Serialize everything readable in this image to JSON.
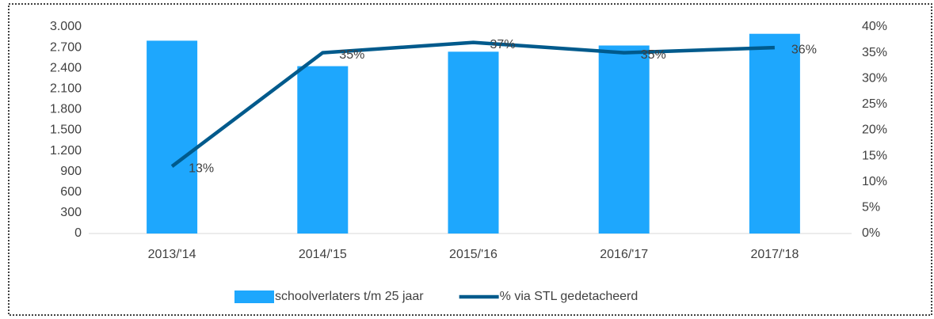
{
  "chart_data": {
    "type": "bar_line",
    "categories": [
      "2013/'14",
      "2014/'15",
      "2015/'16",
      "2016/'17",
      "2017/'18"
    ],
    "series": [
      {
        "name": "schoolverlaters t/m 25 jaar",
        "type": "bar",
        "color": "#1ea7fd",
        "values": [
          2800,
          2430,
          2640,
          2730,
          2900
        ]
      },
      {
        "name": "% via STL gedetacheerd",
        "type": "line",
        "axis": "y2",
        "color": "#005a8c",
        "values": [
          13,
          35,
          37,
          35,
          36
        ],
        "value_labels": [
          "13%",
          "35%",
          "37%",
          "35%",
          "36%"
        ]
      }
    ],
    "ylim": [
      0,
      3000
    ],
    "yticks": [
      0,
      300,
      600,
      900,
      {
        "value": 1200,
        "label": "1.200"
      },
      {
        "value": 1500,
        "label": "1.500"
      },
      {
        "value": 1800,
        "label": "1.800"
      },
      {
        "value": 2100,
        "label": "2.100"
      },
      {
        "value": 2400,
        "label": "2.400"
      },
      {
        "value": 2700,
        "label": "2.700"
      },
      {
        "value": 3000,
        "label": "3.000"
      }
    ],
    "y2lim": [
      0,
      40
    ],
    "y2ticks": [
      {
        "value": 0,
        "label": "0%"
      },
      {
        "value": 5,
        "label": "5%"
      },
      {
        "value": 10,
        "label": "10%"
      },
      {
        "value": 15,
        "label": "15%"
      },
      {
        "value": 20,
        "label": "20%"
      },
      {
        "value": 25,
        "label": "25%"
      },
      {
        "value": 30,
        "label": "30%"
      },
      {
        "value": 35,
        "label": "35%"
      },
      {
        "value": 40,
        "label": "40%"
      }
    ],
    "legend": "bottom",
    "grid": false
  }
}
